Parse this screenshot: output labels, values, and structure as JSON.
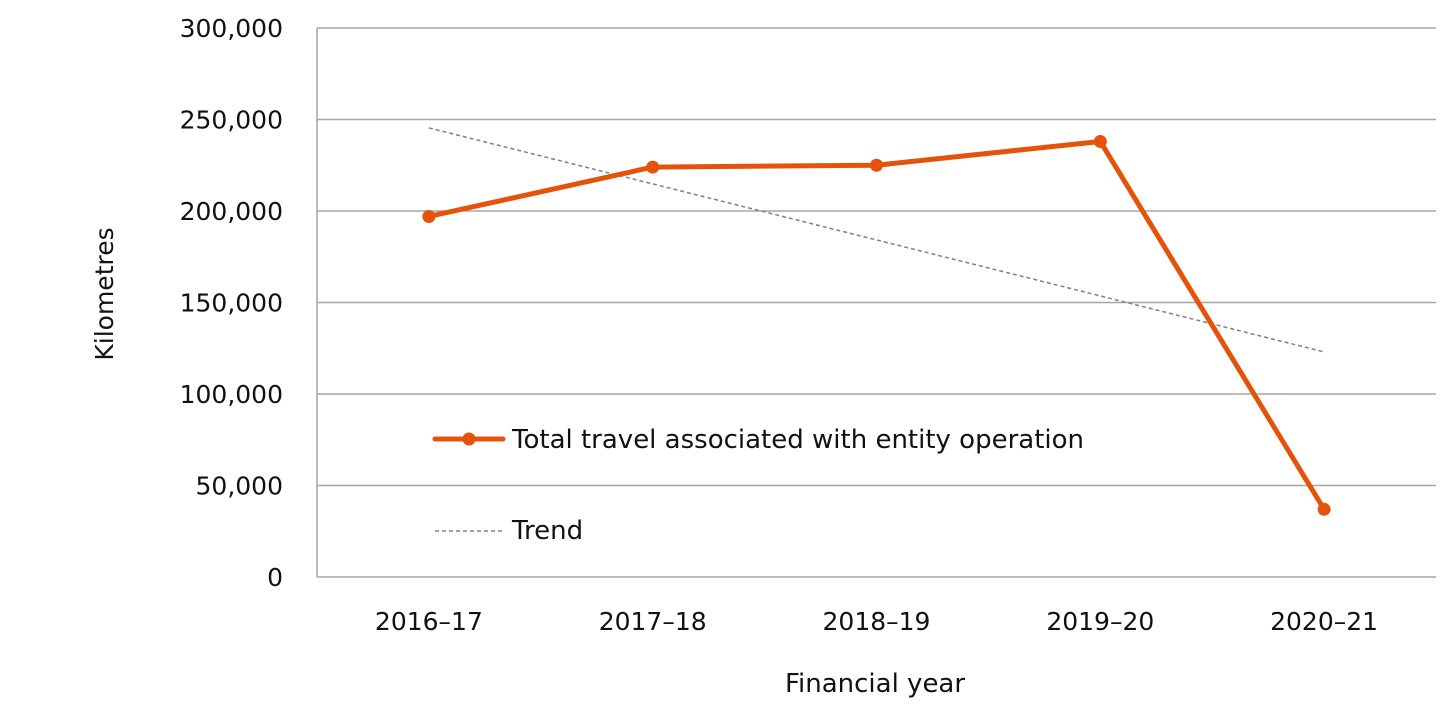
{
  "chart_data": {
    "type": "line",
    "title": "",
    "xlabel": "Financial year",
    "ylabel": "Kilometres",
    "categories": [
      "2016–17",
      "2017–18",
      "2018–19",
      "2019–20",
      "2020–21"
    ],
    "ylim": [
      0,
      300000
    ],
    "yticks": [
      0,
      50000,
      100000,
      150000,
      200000,
      250000,
      300000
    ],
    "ytick_labels": [
      "0",
      "50,000",
      "100,000",
      "150,000",
      "200,000",
      "250,000",
      "300,000"
    ],
    "grid": "horizontal",
    "legend_position": "inside-lower-left",
    "series": [
      {
        "name": "Total travel associated with entity operation",
        "color": "#E5530A",
        "style": "solid-with-markers",
        "values": [
          197000,
          224000,
          225000,
          238000,
          37000
        ]
      },
      {
        "name": "Trend",
        "color": "#808080",
        "style": "dashed",
        "values": [
          245400,
          214800,
          184200,
          153600,
          123000
        ]
      }
    ]
  }
}
